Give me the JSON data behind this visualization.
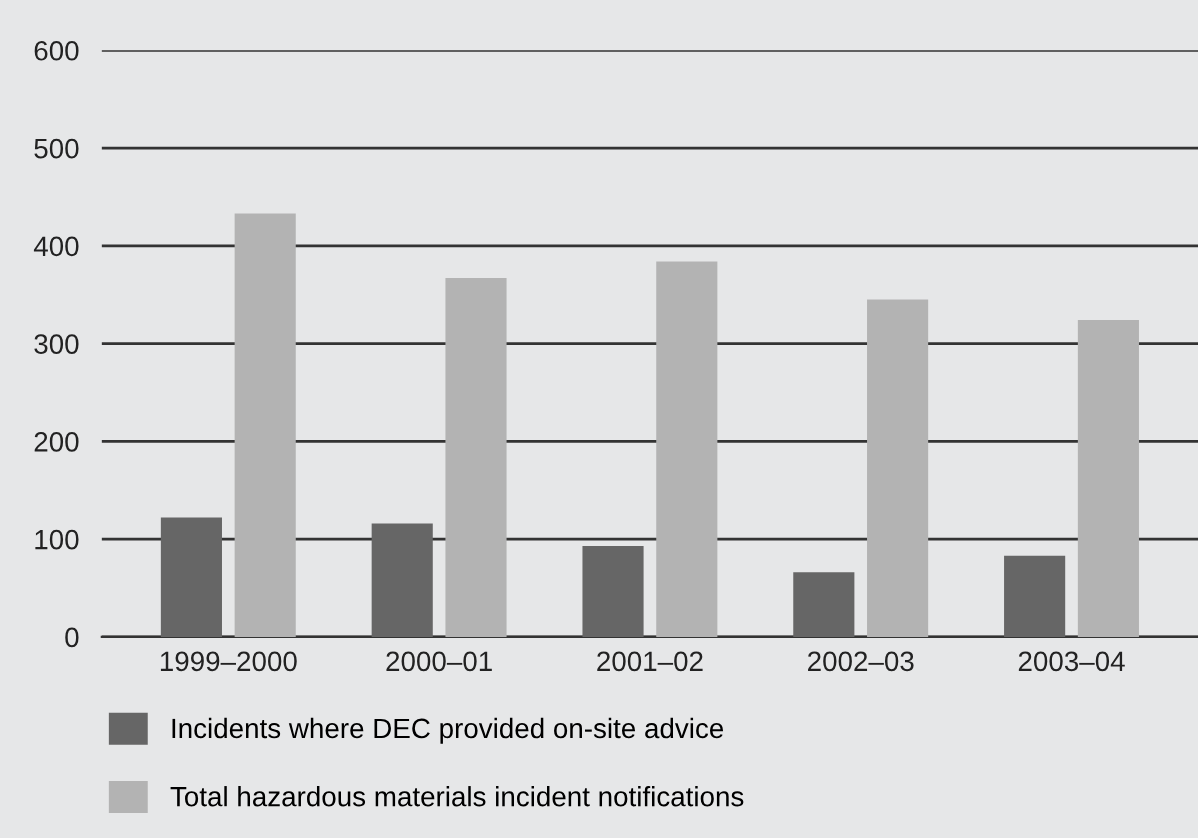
{
  "chart_data": {
    "type": "bar",
    "categories": [
      "1999–2000",
      "2000–01",
      "2001–02",
      "2002–03",
      "2003–04"
    ],
    "series": [
      {
        "name": "Incidents where DEC provided on-site advice",
        "color": "#666666",
        "values": [
          122,
          116,
          93,
          66,
          83
        ]
      },
      {
        "name": "Total hazardous materials incident notifications",
        "color": "#b3b3b3",
        "values": [
          433,
          367,
          384,
          345,
          324
        ]
      }
    ],
    "ylim": [
      0,
      600
    ],
    "yticks": [
      0,
      100,
      200,
      300,
      400,
      500,
      600
    ],
    "grid": "y",
    "legend": "bottom left"
  }
}
